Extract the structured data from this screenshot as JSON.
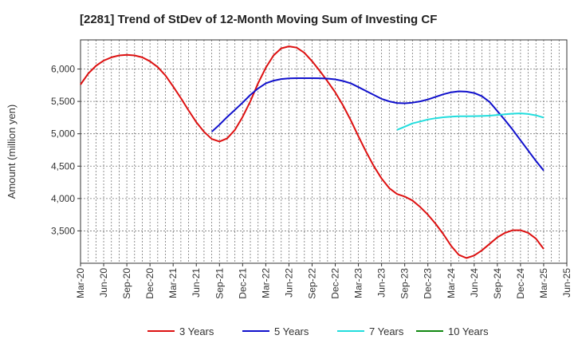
{
  "chart_data": {
    "type": "line",
    "title": "[2281]  Trend of StDev of 12-Month Moving Sum of Investing CF",
    "xlabel": "",
    "ylabel": "Amount (million yen)",
    "ylim": [
      3000,
      6450
    ],
    "y_ticks": [
      3500,
      4000,
      4500,
      5000,
      5500,
      6000
    ],
    "y_tick_labels": [
      "3,500",
      "4,000",
      "4,500",
      "5,000",
      "5,500",
      "6,000"
    ],
    "x_tick_labels": [
      "Mar-20",
      "Jun-20",
      "Sep-20",
      "Dec-20",
      "Mar-21",
      "Jun-21",
      "Sep-21",
      "Dec-21",
      "Mar-22",
      "Jun-22",
      "Sep-22",
      "Dec-22",
      "Mar-23",
      "Jun-23",
      "Sep-23",
      "Dec-23",
      "Mar-24",
      "Jun-24",
      "Sep-24",
      "Dec-24",
      "Mar-25",
      "Jun-25"
    ],
    "grid": true,
    "legend_position": "bottom",
    "series": [
      {
        "name": "3 Years",
        "color": "#dd1111",
        "x": [
          "Mar-20",
          "Apr-20",
          "May-20",
          "Jun-20",
          "Jul-20",
          "Aug-20",
          "Sep-20",
          "Oct-20",
          "Nov-20",
          "Dec-20",
          "Jan-21",
          "Feb-21",
          "Mar-21",
          "Apr-21",
          "May-21",
          "Jun-21",
          "Jul-21",
          "Aug-21",
          "Sep-21",
          "Oct-21",
          "Nov-21",
          "Dec-21",
          "Jan-22",
          "Feb-22",
          "Mar-22",
          "Apr-22",
          "May-22",
          "Jun-22",
          "Jul-22",
          "Aug-22",
          "Sep-22",
          "Oct-22",
          "Nov-22",
          "Dec-22",
          "Jan-23",
          "Feb-23",
          "Mar-23",
          "Apr-23",
          "May-23",
          "Jun-23",
          "Jul-23",
          "Aug-23",
          "Sep-23",
          "Oct-23",
          "Nov-23",
          "Dec-23",
          "Jan-24",
          "Feb-24",
          "Mar-24",
          "Apr-24",
          "May-24",
          "Jun-24",
          "Jul-24",
          "Aug-24",
          "Sep-24",
          "Oct-24",
          "Nov-24",
          "Dec-24",
          "Jan-25",
          "Feb-25",
          "Mar-25"
        ],
        "values": [
          5760,
          5930,
          6050,
          6130,
          6180,
          6210,
          6220,
          6210,
          6180,
          6120,
          6030,
          5900,
          5730,
          5550,
          5360,
          5180,
          5030,
          4920,
          4880,
          4930,
          5060,
          5260,
          5500,
          5780,
          6020,
          6210,
          6320,
          6350,
          6330,
          6250,
          6120,
          5970,
          5810,
          5640,
          5440,
          5210,
          4960,
          4720,
          4500,
          4310,
          4160,
          4070,
          4030,
          3970,
          3870,
          3750,
          3610,
          3450,
          3270,
          3130,
          3080,
          3120,
          3200,
          3300,
          3400,
          3470,
          3510,
          3510,
          3470,
          3380,
          3220
        ]
      },
      {
        "name": "5 Years",
        "color": "#1010cc",
        "x": [
          "Aug-21",
          "Sep-21",
          "Oct-21",
          "Nov-21",
          "Dec-21",
          "Jan-22",
          "Feb-22",
          "Mar-22",
          "Apr-22",
          "May-22",
          "Jun-22",
          "Jul-22",
          "Aug-22",
          "Sep-22",
          "Oct-22",
          "Nov-22",
          "Dec-22",
          "Jan-23",
          "Feb-23",
          "Mar-23",
          "Apr-23",
          "May-23",
          "Jun-23",
          "Jul-23",
          "Aug-23",
          "Sep-23",
          "Oct-23",
          "Nov-23",
          "Dec-23",
          "Jan-24",
          "Feb-24",
          "Mar-24",
          "Apr-24",
          "May-24",
          "Jun-24",
          "Jul-24",
          "Aug-24",
          "Sep-24",
          "Oct-24",
          "Nov-24",
          "Dec-24",
          "Jan-25",
          "Feb-25",
          "Mar-25"
        ],
        "values": [
          5030,
          5140,
          5260,
          5370,
          5480,
          5600,
          5700,
          5780,
          5820,
          5845,
          5855,
          5858,
          5858,
          5858,
          5857,
          5852,
          5840,
          5815,
          5780,
          5720,
          5660,
          5600,
          5540,
          5500,
          5475,
          5470,
          5480,
          5500,
          5530,
          5570,
          5610,
          5640,
          5655,
          5650,
          5630,
          5580,
          5490,
          5350,
          5210,
          5060,
          4900,
          4740,
          4580,
          4430
        ]
      },
      {
        "name": "7 Years",
        "color": "#22dddd",
        "x": [
          "Aug-23",
          "Sep-23",
          "Oct-23",
          "Nov-23",
          "Dec-23",
          "Jan-24",
          "Feb-24",
          "Mar-24",
          "Apr-24",
          "May-24",
          "Jun-24",
          "Jul-24",
          "Aug-24",
          "Sep-24",
          "Oct-24",
          "Nov-24",
          "Dec-24",
          "Jan-25",
          "Feb-25",
          "Mar-25"
        ],
        "values": [
          5060,
          5110,
          5160,
          5190,
          5220,
          5240,
          5255,
          5265,
          5270,
          5270,
          5272,
          5275,
          5280,
          5290,
          5300,
          5310,
          5315,
          5305,
          5285,
          5250
        ]
      },
      {
        "name": "10 Years",
        "color": "#118811",
        "x": [],
        "values": []
      }
    ]
  }
}
